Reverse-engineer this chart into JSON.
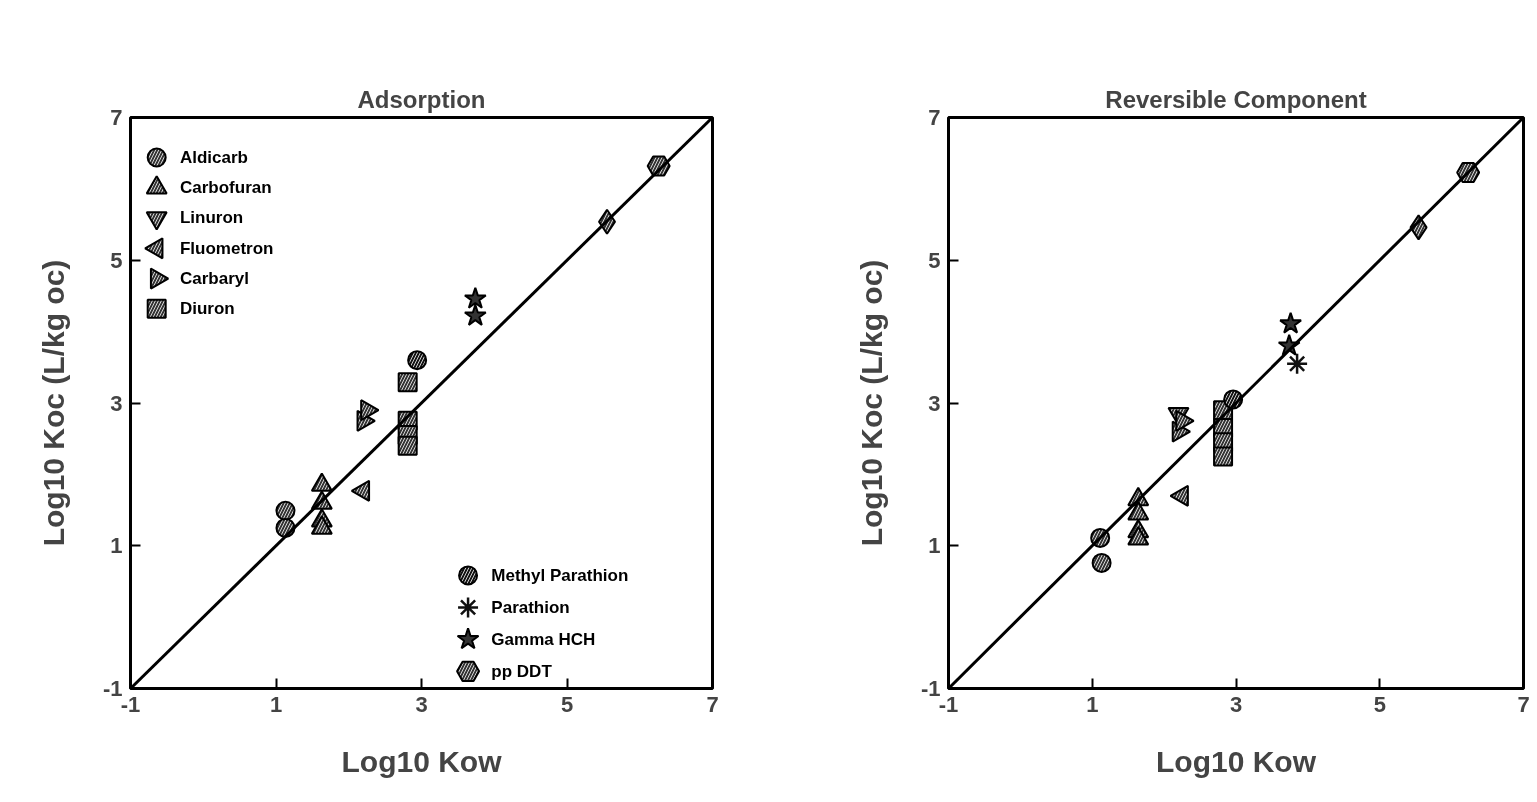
{
  "chart_data": [
    {
      "type": "scatter",
      "title": "Adsorption",
      "xlabel": "Log10 Kow",
      "ylabel": "Log10 Koc (L/kg oc)",
      "xlim": [
        -1,
        7
      ],
      "ylim": [
        -1,
        7
      ],
      "xticks": [
        -1,
        1,
        3,
        5,
        7
      ],
      "yticks": [
        -1,
        1,
        3,
        5,
        7
      ],
      "grid": false,
      "legend": "left",
      "series": [
        {
          "name": "Aldicarb",
          "color": "#333333",
          "marker": "circle",
          "x": [
            1.13,
            1.13
          ],
          "values": [
            1.49,
            1.25
          ]
        },
        {
          "name": "Carbofuran",
          "color": "#333333",
          "marker": "triangle",
          "x": [
            1.63,
            1.63,
            1.63,
            1.63
          ],
          "values": [
            1.85,
            1.6,
            1.35,
            1.25
          ]
        },
        {
          "name": "Linuron",
          "color": "#333333",
          "marker": "triangle_down"
        },
        {
          "name": "Fluometron",
          "color": "#333333",
          "marker": "triangle_left",
          "x": [
            2.2
          ],
          "values": [
            1.77
          ]
        },
        {
          "name": "Carbaryl",
          "color": "#333333",
          "marker": "triangle_right",
          "x": [
            2.2,
            2.25
          ],
          "values": [
            2.75,
            2.9
          ]
        },
        {
          "name": "Diuron",
          "color": "#333333",
          "marker": "square",
          "x": [
            2.81,
            2.81,
            2.81,
            2.81
          ],
          "values": [
            3.29,
            2.75,
            2.55,
            2.4
          ]
        },
        {
          "name": "Methyl Parathion",
          "color": "#111111",
          "marker": "circle",
          "x": [
            2.94
          ],
          "values": [
            3.6
          ]
        },
        {
          "name": "Parathion",
          "color": "#111111",
          "marker": "cross"
        },
        {
          "name": "Gamma HCH",
          "color": "#333333",
          "marker": "star",
          "x": [
            3.74,
            3.74
          ],
          "values": [
            4.46,
            4.22
          ]
        },
        {
          "color": "#333333",
          "marker": "diamond",
          "x": [
            5.55
          ],
          "values": [
            5.54
          ]
        },
        {
          "name": "pp DDT",
          "color": "#333333",
          "x": [
            6.26
          ],
          "values": [
            6.32
          ]
        },
        {
          "type": "line",
          "color": "#000000",
          "x": [
            -1,
            7
          ],
          "values": [
            -1,
            7
          ]
        }
      ]
    },
    {
      "type": "scatter",
      "title": "Reversible Component",
      "xlabel": "Log10 Kow",
      "ylabel": "Log10 Koc (L/kg oc)",
      "xlim": [
        -1,
        7
      ],
      "ylim": [
        -1,
        7
      ],
      "xticks": [
        -1,
        1,
        3,
        5,
        7
      ],
      "yticks": [
        -1,
        1,
        3,
        5,
        7
      ],
      "grid": false,
      "legend": false,
      "series": [
        {
          "color": "#333333",
          "marker": "circle",
          "x": [
            1.11,
            1.13
          ],
          "values": [
            1.11,
            0.76
          ]
        },
        {
          "color": "#333333",
          "marker": "triangle",
          "x": [
            1.64,
            1.64,
            1.64,
            1.64
          ],
          "values": [
            1.65,
            1.45,
            1.2,
            1.1
          ]
        },
        {
          "color": "#333333",
          "marker": "triangle_down",
          "x": [
            2.2
          ],
          "values": [
            2.85
          ]
        },
        {
          "color": "#333333",
          "marker": "triangle_left",
          "x": [
            2.25
          ],
          "values": [
            1.7
          ]
        },
        {
          "color": "#333333",
          "marker": "triangle_right",
          "x": [
            2.2,
            2.25
          ],
          "values": [
            2.6,
            2.75
          ]
        },
        {
          "color": "#333333",
          "marker": "square",
          "x": [
            2.82,
            2.82,
            2.82,
            2.82
          ],
          "values": [
            2.9,
            2.65,
            2.45,
            2.25
          ]
        },
        {
          "color": "#111111",
          "marker": "circle",
          "x": [
            2.96
          ],
          "values": [
            3.05
          ]
        },
        {
          "color": "#111111",
          "marker": "cross",
          "x": [
            3.85
          ],
          "values": [
            3.55
          ]
        },
        {
          "color": "#333333",
          "marker": "star",
          "x": [
            3.76,
            3.74
          ],
          "values": [
            4.11,
            3.8
          ]
        },
        {
          "color": "#333333",
          "marker": "diamond",
          "x": [
            5.54
          ],
          "values": [
            5.46
          ]
        },
        {
          "color": "#333333",
          "x": [
            6.23
          ],
          "values": [
            6.23
          ]
        },
        {
          "type": "line",
          "color": "#000000",
          "x": [
            -1,
            7
          ],
          "values": [
            -1,
            7
          ]
        }
      ]
    }
  ]
}
